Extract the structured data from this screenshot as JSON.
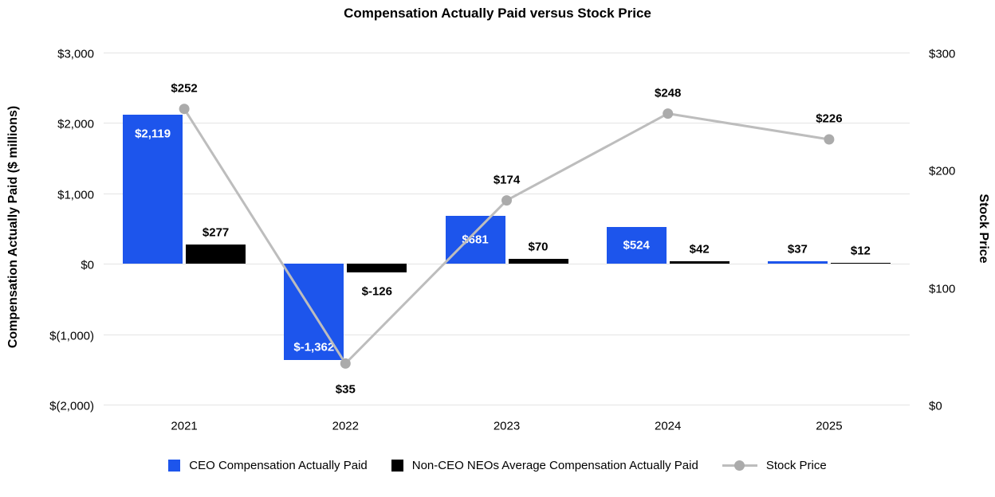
{
  "title": "Compensation Actually Paid versus Stock Price",
  "chart_data": {
    "type": "bar",
    "subtype": "combo-bar-line-dual-axis",
    "categories": [
      "2021",
      "2022",
      "2023",
      "2024",
      "2025"
    ],
    "series": [
      {
        "name": "CEO Compensation Actually Paid",
        "type": "bar",
        "axis": "left",
        "color": "#1d55ec",
        "values": [
          2119,
          -1362,
          681,
          524,
          37
        ],
        "labels": [
          "$2,119",
          "$-1,362",
          "$681",
          "$524",
          "$37"
        ]
      },
      {
        "name": "Non-CEO NEOs Average Compensation Actually Paid",
        "type": "bar",
        "axis": "left",
        "color": "#000000",
        "values": [
          277,
          -126,
          70,
          42,
          12
        ],
        "labels": [
          "$277",
          "$-126",
          "$70",
          "$42",
          "$12"
        ]
      },
      {
        "name": "Stock Price",
        "type": "line",
        "axis": "right",
        "color": "#bdbdbd",
        "point_color": "#ababab",
        "values": [
          252,
          35,
          174,
          248,
          226
        ],
        "labels": [
          "$252",
          "$35",
          "$174",
          "$248",
          "$226"
        ]
      }
    ],
    "left_axis": {
      "title": "Compensation Actually Paid ($ millions)",
      "ticks": [
        "$3,000",
        "$2,000",
        "$1,000",
        "$0",
        "$(1,000)",
        "$(2,000)"
      ],
      "tick_values": [
        3000,
        2000,
        1000,
        0,
        -1000,
        -2000
      ],
      "min": -2000,
      "max": 3000
    },
    "right_axis": {
      "title": "Stock Price",
      "ticks": [
        "$300",
        "$200",
        "$100",
        "$0"
      ],
      "tick_values": [
        300,
        200,
        100,
        0
      ],
      "min": 0,
      "max": 300
    },
    "grid": true,
    "legend_position": "bottom",
    "colors": {
      "gridline": "#e4e4e4",
      "bar_label_inside": "#ffffff",
      "bar_label_outside": "#000000",
      "text": "#000000"
    }
  }
}
